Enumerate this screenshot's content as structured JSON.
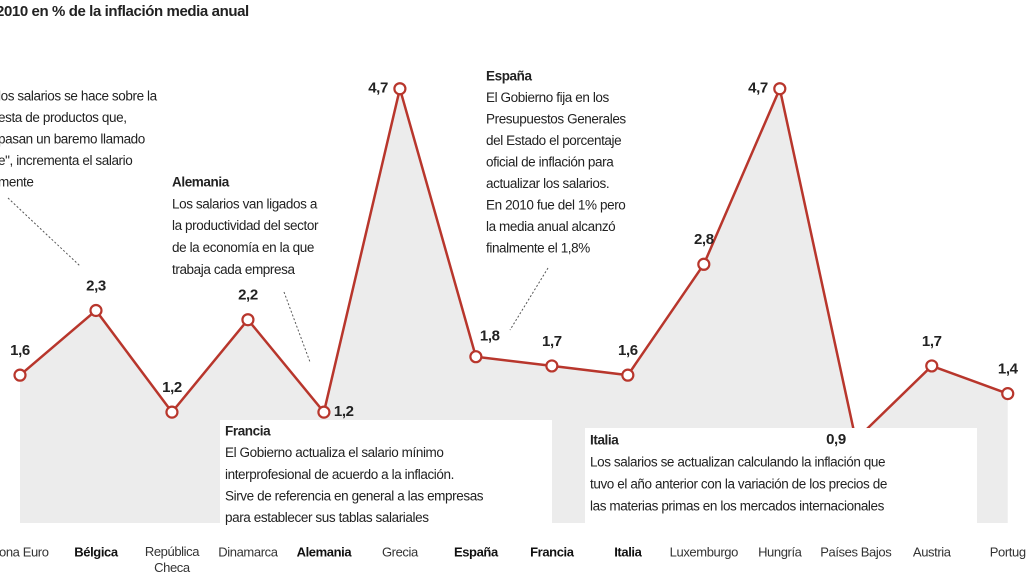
{
  "chart_data": {
    "type": "line",
    "title": "2010 en % de la inflación media anual",
    "categories": [
      "Zona Euro",
      "Bélgica",
      "República Checa",
      "Dinamarca",
      "Alemania",
      "Grecia",
      "España",
      "Francia",
      "Italia",
      "Luxemburgo",
      "Hungría",
      "Países Bajos",
      "Austria",
      "Portug"
    ],
    "values": [
      1.6,
      2.3,
      1.2,
      2.2,
      1.2,
      4.7,
      1.8,
      1.7,
      1.6,
      2.8,
      4.7,
      0.9,
      1.7,
      1.4
    ],
    "value_labels": [
      "1,6",
      "2,3",
      "1,2",
      "2,2",
      "1,2",
      "4,7",
      "1,8",
      "1,7",
      "1,6",
      "2,8",
      "4,7",
      "0,9",
      "1,7",
      "1,4"
    ],
    "color": "#b8362c",
    "area_color": "#ececec",
    "ylim": [
      0,
      5
    ],
    "annotations": [
      {
        "lines": [
          "los salarios se hace sobre la",
          "esta de productos que,",
          "pasan un baremo llamado",
          "e\", incrementa el salario",
          "mente"
        ]
      },
      {
        "title": "Alemania",
        "lines": [
          "Los salarios van ligados a",
          "la productividad del sector",
          "de la economía en la que",
          "trabaja cada empresa"
        ]
      },
      {
        "title": "España",
        "lines": [
          "El Gobierno fija en los",
          "Presupuestos Generales",
          "del Estado el porcentaje",
          "oficial de inflación para",
          "actualizar los salarios.",
          "En 2010 fue del 1% pero",
          "la media anual alcanzó",
          "finalmente el 1,8%"
        ]
      },
      {
        "title": "Francia",
        "lines": [
          "El Gobierno actualiza el salario mínimo",
          "interprofesional de acuerdo a la inflación.",
          "Sirve de referencia en general a las empresas",
          "para establecer sus tablas salariales"
        ]
      },
      {
        "title": "Italia",
        "lines": [
          "Los salarios se actualizan calculando la inflación que",
          "tuvo el año anterior con la variación de los precios de",
          "las materias primas en los mercados internacionales"
        ]
      }
    ]
  }
}
